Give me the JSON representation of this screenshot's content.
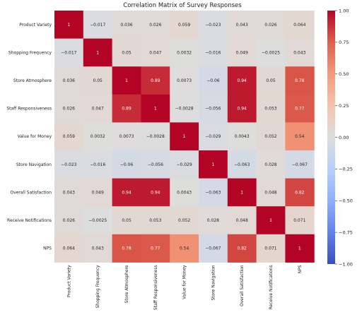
{
  "chart_data": {
    "type": "heatmap",
    "title": "Correlation Matrix of Survey Responses",
    "xlabel": "",
    "ylabel": "",
    "labels": [
      "Product Variety",
      "Shopping Frequency",
      "Store Atmosphere",
      "Staff Responsiveness",
      "Value for Money",
      "Store Navigation",
      "Overall Satisfaction",
      "Receive Notifications",
      "NPS"
    ],
    "values": [
      [
        1,
        -0.017,
        0.036,
        0.026,
        0.059,
        -0.023,
        0.043,
        0.026,
        0.064
      ],
      [
        -0.017,
        1,
        0.05,
        0.047,
        0.0032,
        -0.016,
        0.049,
        -0.0025,
        0.043
      ],
      [
        0.036,
        0.05,
        1,
        0.89,
        0.0073,
        -0.06,
        0.94,
        0.05,
        0.78
      ],
      [
        0.026,
        0.047,
        0.89,
        1,
        -0.0028,
        -0.056,
        0.94,
        0.053,
        0.77
      ],
      [
        0.059,
        0.0032,
        0.0073,
        -0.0028,
        1,
        -0.029,
        0.0043,
        0.052,
        0.54
      ],
      [
        -0.023,
        -0.016,
        -0.06,
        -0.056,
        -0.029,
        1,
        -0.063,
        0.028,
        -0.067
      ],
      [
        0.043,
        0.049,
        0.94,
        0.94,
        0.0043,
        -0.063,
        1,
        0.048,
        0.82
      ],
      [
        0.026,
        -0.0025,
        0.05,
        0.053,
        0.052,
        0.028,
        0.048,
        1,
        0.071
      ],
      [
        0.064,
        0.043,
        0.78,
        0.77,
        0.54,
        -0.067,
        0.82,
        0.071,
        1
      ]
    ],
    "colormap": "coolwarm",
    "vmin": -1,
    "vmax": 1,
    "colorbar_ticks": [
      -1,
      -0.75,
      -0.5,
      -0.25,
      0,
      0.25,
      0.5,
      0.75,
      1
    ],
    "colorbar_tick_labels": [
      "−1.00",
      "−0.75",
      "−0.50",
      "−0.25",
      "0.00",
      "0.25",
      "0.50",
      "0.75",
      "1.00"
    ],
    "annotate": true,
    "grid": false
  }
}
